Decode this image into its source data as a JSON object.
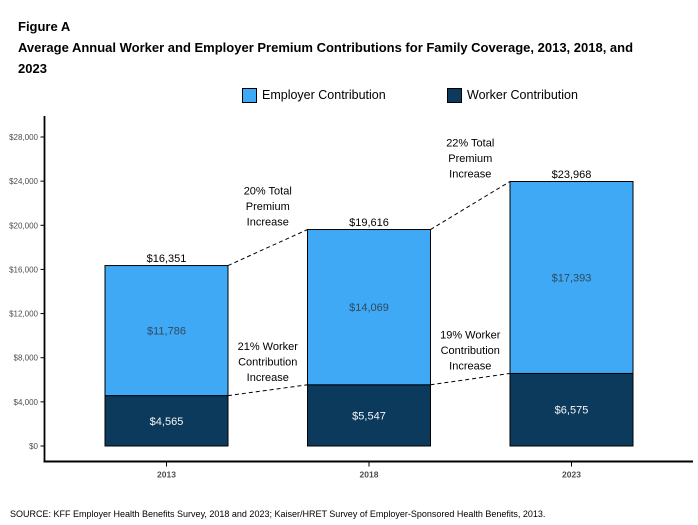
{
  "chart_data": {
    "type": "bar",
    "stacked": true,
    "figure_label": "Figure A",
    "title": "Average Annual Worker and Employer Premium Contributions for Family Coverage, 2013, 2018, and 2023",
    "categories": [
      "2013",
      "2018",
      "2023"
    ],
    "series": [
      {
        "name": "Employer Contribution",
        "color": "#3FA9F5",
        "label_color": "#2F4A60",
        "values": [
          11786,
          14069,
          17393
        ],
        "data_labels": [
          "$11,786",
          "$14,069",
          "$17,393"
        ]
      },
      {
        "name": "Worker Contribution",
        "color": "#0C3A5D",
        "label_color": "#F5F5F5",
        "values": [
          4565,
          5547,
          6575
        ],
        "data_labels": [
          "$4,565",
          "$5,547",
          "$6,575"
        ]
      }
    ],
    "totals": {
      "values": [
        16351,
        19616,
        23968
      ],
      "labels": [
        "$16,351",
        "$19,616",
        "$23,968"
      ]
    },
    "y_axis": {
      "min": 0,
      "max": 28000,
      "tick_step": 4000,
      "tick_labels": [
        "$0",
        "$4,000",
        "$8,000",
        "$12,000",
        "$16,000",
        "$20,000",
        "$24,000",
        "$28,000"
      ],
      "label_color": "#4D4D4D"
    },
    "x_axis": {
      "tick_labels": [
        "2013",
        "2018",
        "2023"
      ],
      "label_color": "#4D4D4D"
    },
    "legend": {
      "position": "top",
      "entries": [
        "Employer Contribution",
        "Worker Contribution"
      ]
    },
    "grid": false,
    "annotations": [
      {
        "lines": [
          "20% Total",
          "Premium",
          "Increase"
        ],
        "level": "total",
        "between": [
          0,
          1
        ]
      },
      {
        "lines": [
          "22% Total",
          "Premium",
          "Increase"
        ],
        "level": "total",
        "between": [
          1,
          2
        ]
      },
      {
        "lines": [
          "21% Worker",
          "Contribution",
          "Increase"
        ],
        "level": "worker",
        "between": [
          0,
          1
        ]
      },
      {
        "lines": [
          "19% Worker",
          "Contribution",
          "Increase"
        ],
        "level": "worker",
        "between": [
          1,
          2
        ]
      }
    ]
  },
  "source": {
    "text": "SOURCE: KFF Employer Health Benefits Survey, 2018 and 2023; Kaiser/HRET Survey of Employer-Sponsored Health Benefits, 2013."
  }
}
